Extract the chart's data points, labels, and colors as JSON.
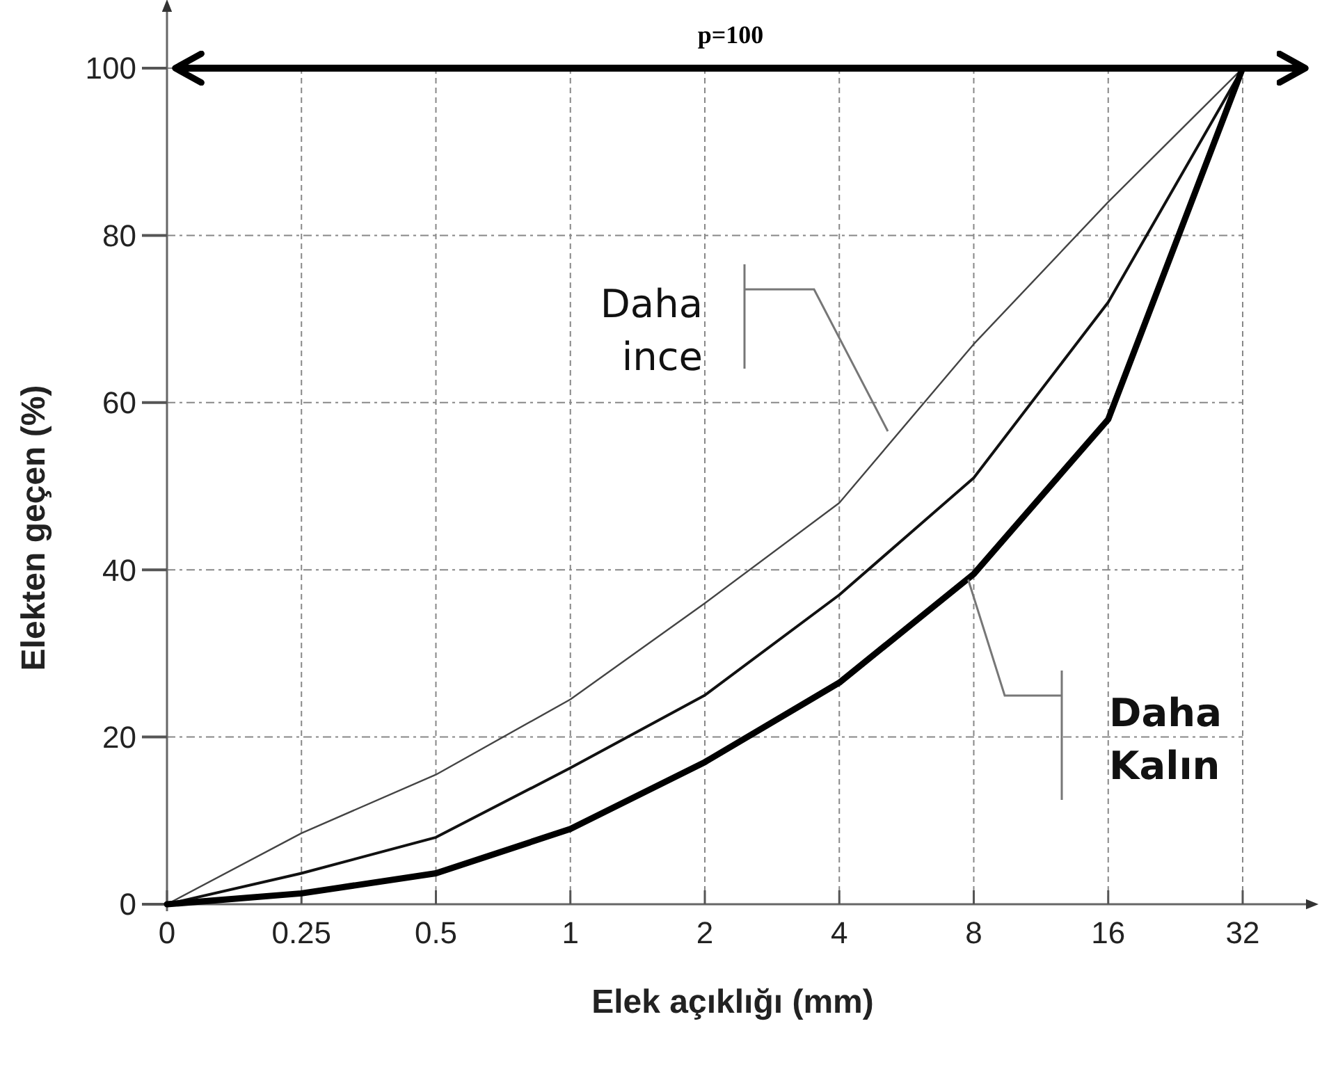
{
  "chart_data": {
    "type": "line",
    "xlabel": "Elek açıklığı (mm)",
    "ylabel": "Elekten geçen (%)",
    "categories": [
      "0",
      "0.25",
      "0.5",
      "1",
      "2",
      "4",
      "8",
      "16",
      "32"
    ],
    "series": [
      {
        "color": "#444444",
        "values": [
          0,
          8.5,
          15.5,
          24.5,
          36,
          48,
          67,
          84,
          100
        ]
      },
      {
        "color": "#111111",
        "values": [
          0,
          3.7,
          8,
          16.3,
          25,
          37,
          51,
          72,
          100
        ]
      },
      {
        "color": "#000000",
        "values": [
          0,
          1.3,
          3.7,
          9,
          17,
          26.5,
          39.5,
          58,
          100
        ]
      }
    ],
    "ylim": [
      0,
      100
    ],
    "yticks": [
      0,
      20,
      40,
      60,
      80,
      100
    ],
    "grid": true,
    "marker": "none",
    "line_style": "solid",
    "ref_lines": [
      {
        "axis": "y",
        "value": 100,
        "label": "p=100",
        "color": "#000000"
      }
    ],
    "annotations": [
      "Daha\nince",
      {
        "text": "Daha\nKalın",
        "x": "8",
        "y": 39.5
      }
    ]
  }
}
